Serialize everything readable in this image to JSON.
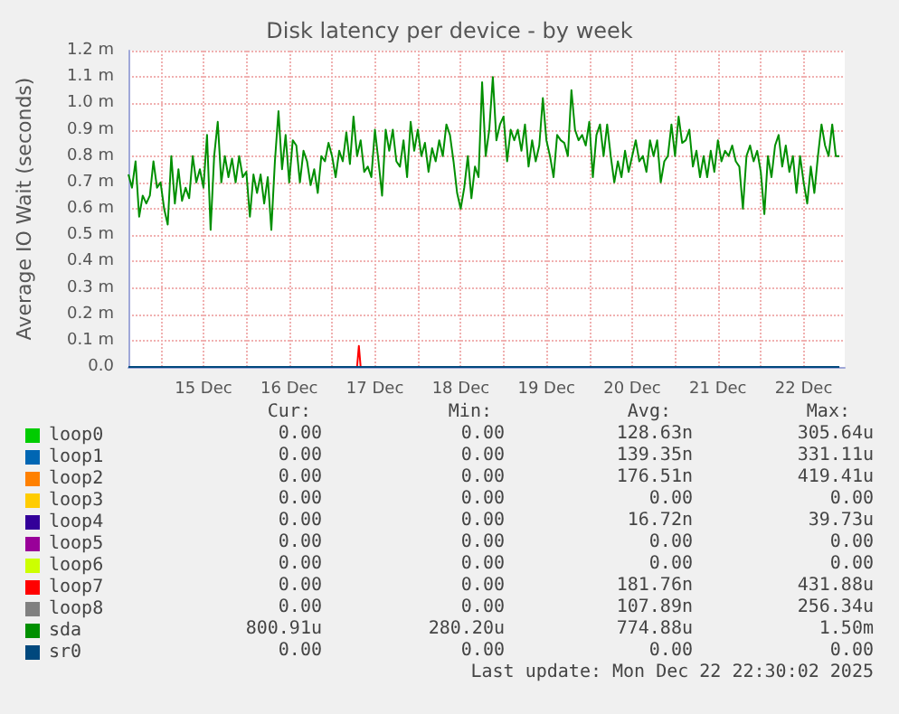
{
  "chart_data": {
    "type": "line",
    "title": "Disk latency per device - by week",
    "ylabel": "Average IO Wait (seconds)",
    "xlim": [
      "2025-12-14T15:00",
      "2025-12-22T23:30"
    ],
    "xticks": [
      {
        "value": "2025-12-15T00:00",
        "label": null
      },
      {
        "value": "2025-12-15T12:00",
        "label": "15 Dec"
      },
      {
        "value": "2025-12-16T00:00",
        "label": null
      },
      {
        "value": "2025-12-16T12:00",
        "label": "16 Dec"
      },
      {
        "value": "2025-12-17T00:00",
        "label": null
      },
      {
        "value": "2025-12-17T12:00",
        "label": "17 Dec"
      },
      {
        "value": "2025-12-18T00:00",
        "label": null
      },
      {
        "value": "2025-12-18T12:00",
        "label": "18 Dec"
      },
      {
        "value": "2025-12-19T00:00",
        "label": null
      },
      {
        "value": "2025-12-19T12:00",
        "label": "19 Dec"
      },
      {
        "value": "2025-12-20T00:00",
        "label": null
      },
      {
        "value": "2025-12-20T12:00",
        "label": "20 Dec"
      },
      {
        "value": "2025-12-21T00:00",
        "label": null
      },
      {
        "value": "2025-12-21T12:00",
        "label": "21 Dec"
      },
      {
        "value": "2025-12-22T00:00",
        "label": null
      },
      {
        "value": "2025-12-22T12:00",
        "label": "22 Dec"
      }
    ],
    "ylim": [
      0,
      1.2
    ],
    "yticks": [
      {
        "value": 0,
        "label": "0.0"
      },
      {
        "value": 0.1,
        "label": "0.1 m"
      },
      {
        "value": 0.2,
        "label": "0.2 m"
      },
      {
        "value": 0.3,
        "label": "0.3 m"
      },
      {
        "value": 0.4,
        "label": "0.4 m"
      },
      {
        "value": 0.5,
        "label": "0.5 m"
      },
      {
        "value": 0.6,
        "label": "0.6 m"
      },
      {
        "value": 0.7,
        "label": "0.7 m"
      },
      {
        "value": 0.8,
        "label": "0.8 m"
      },
      {
        "value": 0.9,
        "label": "0.9 m"
      },
      {
        "value": 1.0,
        "label": "1.0 m"
      },
      {
        "value": 1.1,
        "label": "1.1 m"
      },
      {
        "value": 1.2,
        "label": "1.2 m"
      }
    ],
    "grid": true,
    "legend": "bottom",
    "marker": "none",
    "line_style": "solid",
    "series": [
      {
        "name": "loop0",
        "color": "#00cc00"
      },
      {
        "name": "loop1",
        "color": "#0066b3"
      },
      {
        "name": "loop2",
        "color": "#ff8000"
      },
      {
        "name": "loop3",
        "color": "#ffcc00"
      },
      {
        "name": "loop4",
        "color": "#330099"
      },
      {
        "name": "loop5",
        "color": "#990099"
      },
      {
        "name": "loop6",
        "color": "#ccff00"
      },
      {
        "name": "loop7",
        "color": "#ff0000",
        "x": [
          "2025-12-17T07:00",
          "2025-12-17T07:30",
          "2025-12-17T08:00"
        ],
        "values": [
          0,
          0.08,
          0
        ]
      },
      {
        "name": "loop8",
        "color": "#808080"
      },
      {
        "name": "sda",
        "color": "#008f00",
        "x": [
          "2025-12-14T15:00",
          "2025-12-14T16:00",
          "2025-12-14T17:00",
          "2025-12-14T18:00",
          "2025-12-14T19:00",
          "2025-12-14T20:00",
          "2025-12-14T21:00",
          "2025-12-14T22:00",
          "2025-12-14T23:00",
          "2025-12-15T00:00",
          "2025-12-15T01:00",
          "2025-12-15T02:00",
          "2025-12-15T03:00",
          "2025-12-15T04:00",
          "2025-12-15T05:00",
          "2025-12-15T06:00",
          "2025-12-15T07:00",
          "2025-12-15T08:00",
          "2025-12-15T09:00",
          "2025-12-15T10:00",
          "2025-12-15T11:00",
          "2025-12-15T12:00",
          "2025-12-15T13:00",
          "2025-12-15T14:00",
          "2025-12-15T15:00",
          "2025-12-15T16:00",
          "2025-12-15T17:00",
          "2025-12-15T18:00",
          "2025-12-15T19:00",
          "2025-12-15T20:00",
          "2025-12-15T21:00",
          "2025-12-15T22:00",
          "2025-12-15T23:00",
          "2025-12-16T00:00",
          "2025-12-16T01:00",
          "2025-12-16T02:00",
          "2025-12-16T03:00",
          "2025-12-16T04:00",
          "2025-12-16T05:00",
          "2025-12-16T06:00",
          "2025-12-16T07:00",
          "2025-12-16T08:00",
          "2025-12-16T09:00",
          "2025-12-16T10:00",
          "2025-12-16T11:00",
          "2025-12-16T12:00",
          "2025-12-16T13:00",
          "2025-12-16T14:00",
          "2025-12-16T15:00",
          "2025-12-16T16:00",
          "2025-12-16T17:00",
          "2025-12-16T18:00",
          "2025-12-16T19:00",
          "2025-12-16T20:00",
          "2025-12-16T21:00",
          "2025-12-16T22:00",
          "2025-12-16T23:00",
          "2025-12-17T00:00",
          "2025-12-17T01:00",
          "2025-12-17T02:00",
          "2025-12-17T03:00",
          "2025-12-17T04:00",
          "2025-12-17T05:00",
          "2025-12-17T06:00",
          "2025-12-17T07:00",
          "2025-12-17T08:00",
          "2025-12-17T09:00",
          "2025-12-17T10:00",
          "2025-12-17T11:00",
          "2025-12-17T12:00",
          "2025-12-17T13:00",
          "2025-12-17T14:00",
          "2025-12-17T15:00",
          "2025-12-17T16:00",
          "2025-12-17T17:00",
          "2025-12-17T18:00",
          "2025-12-17T19:00",
          "2025-12-17T20:00",
          "2025-12-17T21:00",
          "2025-12-17T22:00",
          "2025-12-17T23:00",
          "2025-12-18T00:00",
          "2025-12-18T01:00",
          "2025-12-18T02:00",
          "2025-12-18T03:00",
          "2025-12-18T04:00",
          "2025-12-18T05:00",
          "2025-12-18T06:00",
          "2025-12-18T07:00",
          "2025-12-18T08:00",
          "2025-12-18T09:00",
          "2025-12-18T10:00",
          "2025-12-18T11:00",
          "2025-12-18T12:00",
          "2025-12-18T13:00",
          "2025-12-18T14:00",
          "2025-12-18T15:00",
          "2025-12-18T16:00",
          "2025-12-18T17:00",
          "2025-12-18T18:00",
          "2025-12-18T19:00",
          "2025-12-18T20:00",
          "2025-12-18T21:00",
          "2025-12-18T22:00",
          "2025-12-18T23:00",
          "2025-12-19T00:00",
          "2025-12-19T01:00",
          "2025-12-19T02:00",
          "2025-12-19T03:00",
          "2025-12-19T04:00",
          "2025-12-19T05:00",
          "2025-12-19T06:00",
          "2025-12-19T07:00",
          "2025-12-19T08:00",
          "2025-12-19T09:00",
          "2025-12-19T10:00",
          "2025-12-19T11:00",
          "2025-12-19T12:00",
          "2025-12-19T13:00",
          "2025-12-19T14:00",
          "2025-12-19T15:00",
          "2025-12-19T16:00",
          "2025-12-19T17:00",
          "2025-12-19T18:00",
          "2025-12-19T19:00",
          "2025-12-19T20:00",
          "2025-12-19T21:00",
          "2025-12-19T22:00",
          "2025-12-19T23:00",
          "2025-12-20T00:00",
          "2025-12-20T01:00",
          "2025-12-20T02:00",
          "2025-12-20T03:00",
          "2025-12-20T04:00",
          "2025-12-20T05:00",
          "2025-12-20T06:00",
          "2025-12-20T07:00",
          "2025-12-20T08:00",
          "2025-12-20T09:00",
          "2025-12-20T10:00",
          "2025-12-20T11:00",
          "2025-12-20T12:00",
          "2025-12-20T13:00",
          "2025-12-20T14:00",
          "2025-12-20T15:00",
          "2025-12-20T16:00",
          "2025-12-20T17:00",
          "2025-12-20T18:00",
          "2025-12-20T19:00",
          "2025-12-20T20:00",
          "2025-12-20T21:00",
          "2025-12-20T22:00",
          "2025-12-20T23:00",
          "2025-12-21T00:00",
          "2025-12-21T01:00",
          "2025-12-21T02:00",
          "2025-12-21T03:00",
          "2025-12-21T04:00",
          "2025-12-21T05:00",
          "2025-12-21T06:00",
          "2025-12-21T07:00",
          "2025-12-21T08:00",
          "2025-12-21T09:00",
          "2025-12-21T10:00",
          "2025-12-21T11:00",
          "2025-12-21T12:00",
          "2025-12-21T13:00",
          "2025-12-21T14:00",
          "2025-12-21T15:00",
          "2025-12-21T16:00",
          "2025-12-21T17:00",
          "2025-12-21T18:00",
          "2025-12-21T19:00",
          "2025-12-21T20:00",
          "2025-12-21T21:00",
          "2025-12-21T22:00",
          "2025-12-21T23:00",
          "2025-12-22T00:00",
          "2025-12-22T01:00",
          "2025-12-22T02:00",
          "2025-12-22T03:00",
          "2025-12-22T04:00",
          "2025-12-22T05:00",
          "2025-12-22T06:00",
          "2025-12-22T07:00",
          "2025-12-22T08:00",
          "2025-12-22T09:00",
          "2025-12-22T10:00",
          "2025-12-22T11:00",
          "2025-12-22T12:00",
          "2025-12-22T13:00",
          "2025-12-22T14:00",
          "2025-12-22T15:00",
          "2025-12-22T16:00",
          "2025-12-22T17:00",
          "2025-12-22T18:00",
          "2025-12-22T19:00",
          "2025-12-22T20:00",
          "2025-12-22T21:00",
          "2025-12-22T22:00"
        ],
        "values": [
          0.73,
          0.68,
          0.78,
          0.57,
          0.65,
          0.62,
          0.65,
          0.78,
          0.68,
          0.7,
          0.6,
          0.54,
          0.8,
          0.62,
          0.75,
          0.63,
          0.68,
          0.64,
          0.8,
          0.7,
          0.75,
          0.68,
          0.88,
          0.52,
          0.8,
          0.93,
          0.7,
          0.8,
          0.72,
          0.79,
          0.7,
          0.8,
          0.72,
          0.74,
          0.57,
          0.73,
          0.66,
          0.73,
          0.62,
          0.72,
          0.52,
          0.78,
          0.97,
          0.75,
          0.88,
          0.7,
          0.86,
          0.84,
          0.7,
          0.82,
          0.78,
          0.69,
          0.75,
          0.66,
          0.8,
          0.78,
          0.85,
          0.8,
          0.72,
          0.82,
          0.78,
          0.89,
          0.77,
          0.95,
          0.8,
          0.86,
          0.74,
          0.76,
          0.72,
          0.9,
          0.78,
          0.65,
          0.9,
          0.82,
          0.9,
          0.78,
          0.76,
          0.86,
          0.72,
          0.93,
          0.82,
          0.9,
          0.8,
          0.85,
          0.74,
          0.83,
          0.78,
          0.86,
          0.8,
          0.92,
          0.88,
          0.78,
          0.66,
          0.6,
          0.68,
          0.8,
          0.64,
          0.76,
          0.72,
          1.08,
          0.8,
          0.9,
          1.1,
          0.86,
          0.92,
          0.95,
          0.78,
          0.9,
          0.86,
          0.9,
          0.82,
          0.92,
          0.76,
          0.86,
          0.78,
          0.84,
          1.02,
          0.86,
          0.8,
          0.72,
          0.88,
          0.86,
          0.85,
          0.8,
          1.05,
          0.9,
          0.86,
          0.88,
          0.84,
          0.93,
          0.72,
          0.88,
          0.92,
          0.8,
          0.92,
          0.8,
          0.7,
          0.78,
          0.72,
          0.82,
          0.74,
          0.8,
          0.86,
          0.78,
          0.8,
          0.74,
          0.86,
          0.8,
          0.86,
          0.7,
          0.78,
          0.8,
          0.92,
          0.8,
          0.95,
          0.85,
          0.86,
          0.9,
          0.76,
          0.82,
          0.72,
          0.8,
          0.72,
          0.82,
          0.74,
          0.86,
          0.78,
          0.82,
          0.8,
          0.84,
          0.78,
          0.76,
          0.6,
          0.8,
          0.84,
          0.78,
          0.82,
          0.74,
          0.58,
          0.8,
          0.72,
          0.84,
          0.88,
          0.76,
          0.84,
          0.74,
          0.8,
          0.66,
          0.8,
          0.7,
          0.62,
          0.76,
          0.66,
          0.8,
          0.92,
          0.84,
          0.8,
          0.92,
          0.8,
          0.8
        ]
      },
      {
        "name": "sr0",
        "color": "#00487d",
        "x": [
          "2025-12-14T15:00",
          "2025-12-22T22:00"
        ],
        "values": [
          0,
          0
        ]
      }
    ],
    "annotations": [
      "Cur:",
      "Min:",
      "Avg:",
      "Max:",
      "0.00",
      "0.00",
      "128.63n",
      "305.64u",
      "0.00",
      "0.00",
      "139.35n",
      "331.11u",
      "0.00",
      "0.00",
      "176.51n",
      "419.41u",
      "0.00",
      "0.00",
      "0.00",
      "0.00",
      "0.00",
      "0.00",
      "16.72n",
      "39.73u",
      "0.00",
      "0.00",
      "0.00",
      "0.00",
      "0.00",
      "0.00",
      "0.00",
      "0.00",
      "0.00",
      "0.00",
      "181.76n",
      "431.88u",
      "0.00",
      "0.00",
      "107.89n",
      "256.34u",
      "800.91u",
      "280.20u",
      "774.88u",
      "1.50m",
      "0.00",
      "0.00",
      "0.00",
      "0.00",
      "Last update: Mon Dec 22 22:30:02 2025"
    ]
  }
}
